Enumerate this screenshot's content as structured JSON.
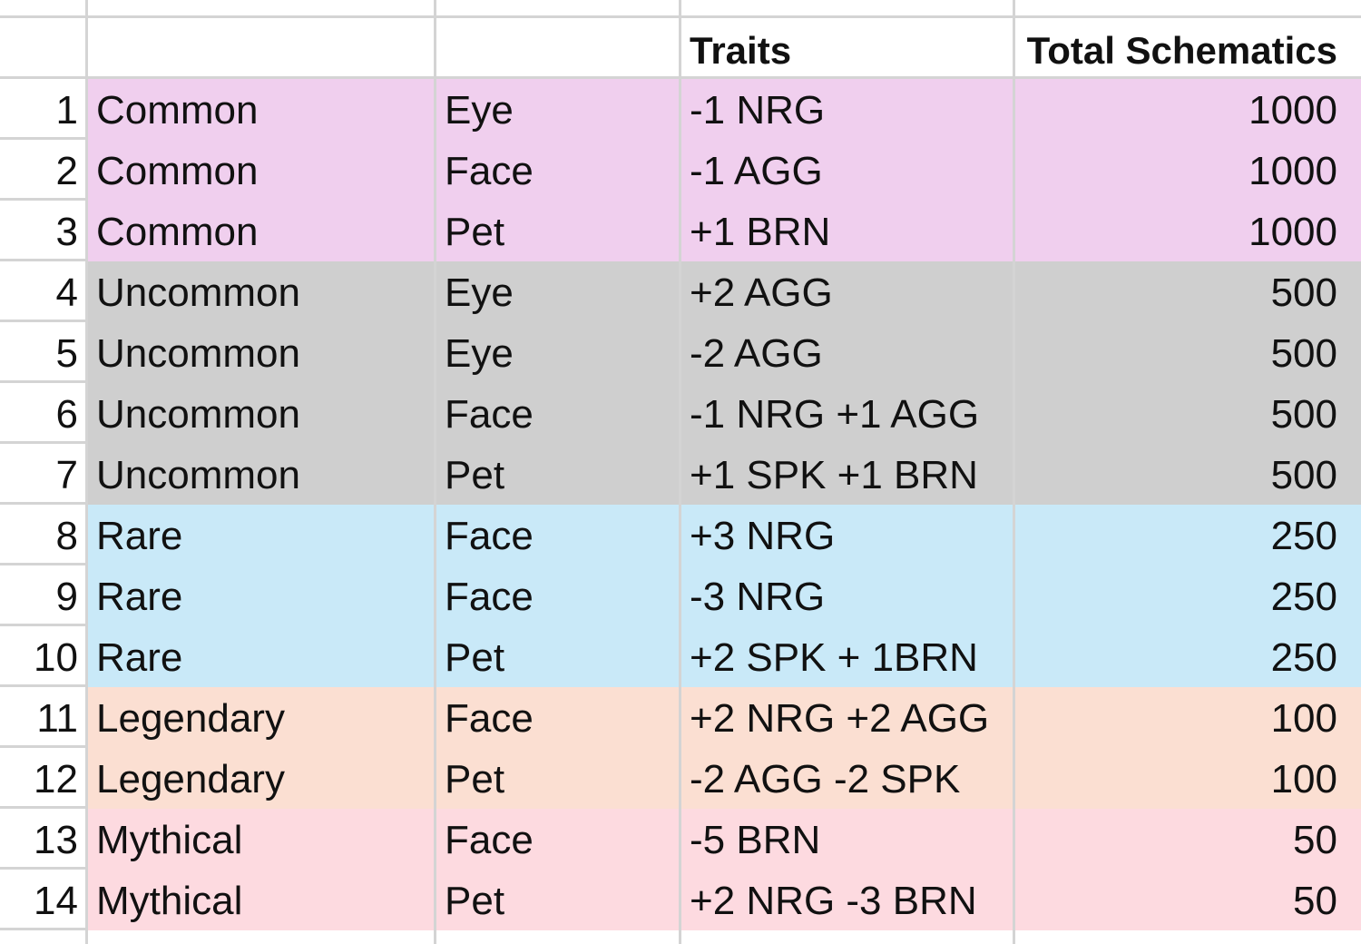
{
  "colors": {
    "Common": "#f0cfee",
    "Uncommon": "#cfcfcf",
    "Rare": "#c9e9f8",
    "Legendary": "#fbdfd2",
    "Mythical": "#fddae0",
    "gridline": "#d4d4d4"
  },
  "header": {
    "traits": "Traits",
    "total": "Total Schematics"
  },
  "rows": [
    {
      "num": "1",
      "rarity": "Common",
      "slot": "Eye",
      "traits": "-1 NRG",
      "total": "1000"
    },
    {
      "num": "2",
      "rarity": "Common",
      "slot": "Face",
      "traits": "-1 AGG",
      "total": "1000"
    },
    {
      "num": "3",
      "rarity": "Common",
      "slot": "Pet",
      "traits": "+1 BRN",
      "total": "1000"
    },
    {
      "num": "4",
      "rarity": "Uncommon",
      "slot": "Eye",
      "traits": "+2 AGG",
      "total": "500"
    },
    {
      "num": "5",
      "rarity": "Uncommon",
      "slot": "Eye",
      "traits": "-2 AGG",
      "total": "500"
    },
    {
      "num": "6",
      "rarity": "Uncommon",
      "slot": "Face",
      "traits": "-1 NRG +1 AGG",
      "total": "500"
    },
    {
      "num": "7",
      "rarity": "Uncommon",
      "slot": "Pet",
      "traits": "+1 SPK +1 BRN",
      "total": "500"
    },
    {
      "num": "8",
      "rarity": "Rare",
      "slot": "Face",
      "traits": "+3 NRG",
      "total": "250"
    },
    {
      "num": "9",
      "rarity": "Rare",
      "slot": "Face",
      "traits": "-3 NRG",
      "total": "250"
    },
    {
      "num": "10",
      "rarity": "Rare",
      "slot": "Pet",
      "traits": "+2 SPK + 1BRN",
      "total": "250"
    },
    {
      "num": "11",
      "rarity": "Legendary",
      "slot": "Face",
      "traits": "+2 NRG +2 AGG",
      "total": "100"
    },
    {
      "num": "12",
      "rarity": "Legendary",
      "slot": "Pet",
      "traits": "-2 AGG -2 SPK",
      "total": "100"
    },
    {
      "num": "13",
      "rarity": "Mythical",
      "slot": "Face",
      "traits": "-5 BRN",
      "total": "50"
    },
    {
      "num": "14",
      "rarity": "Mythical",
      "slot": "Pet",
      "traits": "+2 NRG -3 BRN",
      "total": "50"
    }
  ]
}
